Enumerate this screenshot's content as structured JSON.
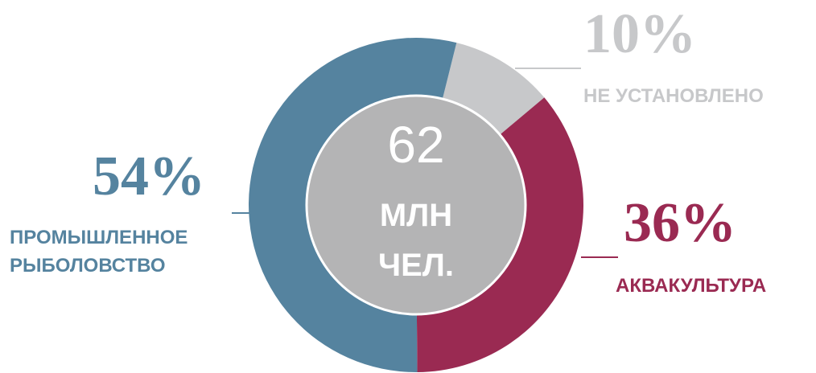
{
  "chart_data": {
    "type": "donut",
    "categories": [
      "НЕ УСТАНОВЛЕНО",
      "АКВАКУЛЬТУРА",
      "ПРОМЫШЛЕННОЕ РЫБОЛОВСТВО"
    ],
    "values": [
      10,
      36,
      54
    ],
    "value_labels": [
      "10%",
      "36%",
      "54%"
    ],
    "colors": [
      "#c7c8ca",
      "#9a2a52",
      "#55839f"
    ],
    "center_lines": [
      "62",
      "МЛН",
      "ЧЕЛ."
    ]
  }
}
